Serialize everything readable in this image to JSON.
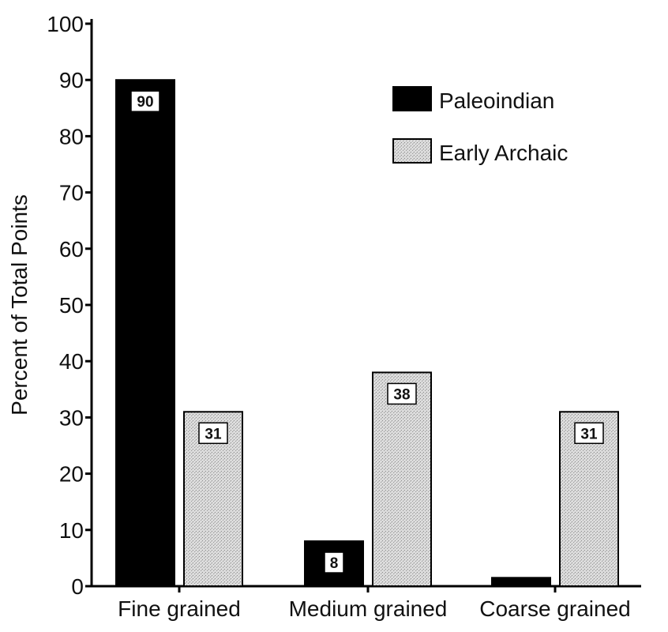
{
  "chart_data": {
    "type": "bar",
    "title": "",
    "xlabel": "",
    "ylabel": "Percent of Total Points",
    "ylim": [
      0,
      100
    ],
    "yticks": [
      0,
      10,
      20,
      30,
      40,
      50,
      60,
      70,
      80,
      90,
      100
    ],
    "categories": [
      "Fine grained",
      "Medium grained",
      "Coarse grained"
    ],
    "series": [
      {
        "name": "Paleoindian",
        "values": [
          90,
          8,
          1.5
        ],
        "labels": [
          "90",
          "8",
          ""
        ],
        "color": "#000000",
        "pattern": "solid"
      },
      {
        "name": "Early Archaic",
        "values": [
          31,
          38,
          31
        ],
        "labels": [
          "31",
          "38",
          "31"
        ],
        "color": "#d3d3d3",
        "pattern": "stipple"
      }
    ],
    "legend_position": "top-right",
    "grid": false
  }
}
